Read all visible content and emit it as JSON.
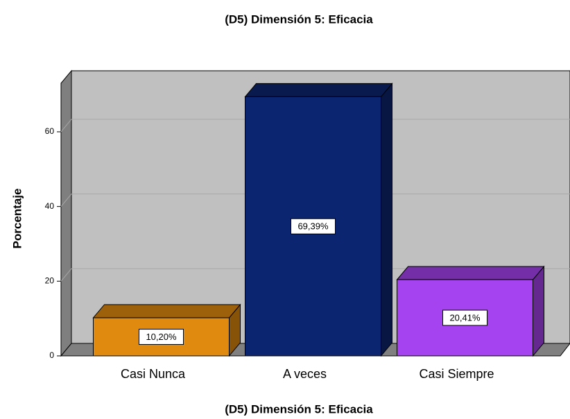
{
  "chart_data": {
    "type": "bar3d",
    "title": "(D5) Dimensión 5:  Eficacia",
    "x_label": "(D5) Dimensión 5:  Eficacia",
    "y_label": "Porcentaje",
    "categories": [
      "Casi Nunca",
      "A veces",
      "Casi Siempre"
    ],
    "values": [
      10.2,
      69.39,
      20.41
    ],
    "value_labels": [
      "10,20%",
      "69,39%",
      "20,41%"
    ],
    "colors": [
      "#e08a0f",
      "#0b2570",
      "#a643f0"
    ],
    "ylim": [
      0,
      73
    ],
    "yticks": [
      0,
      20,
      40,
      60
    ],
    "grid": true
  }
}
